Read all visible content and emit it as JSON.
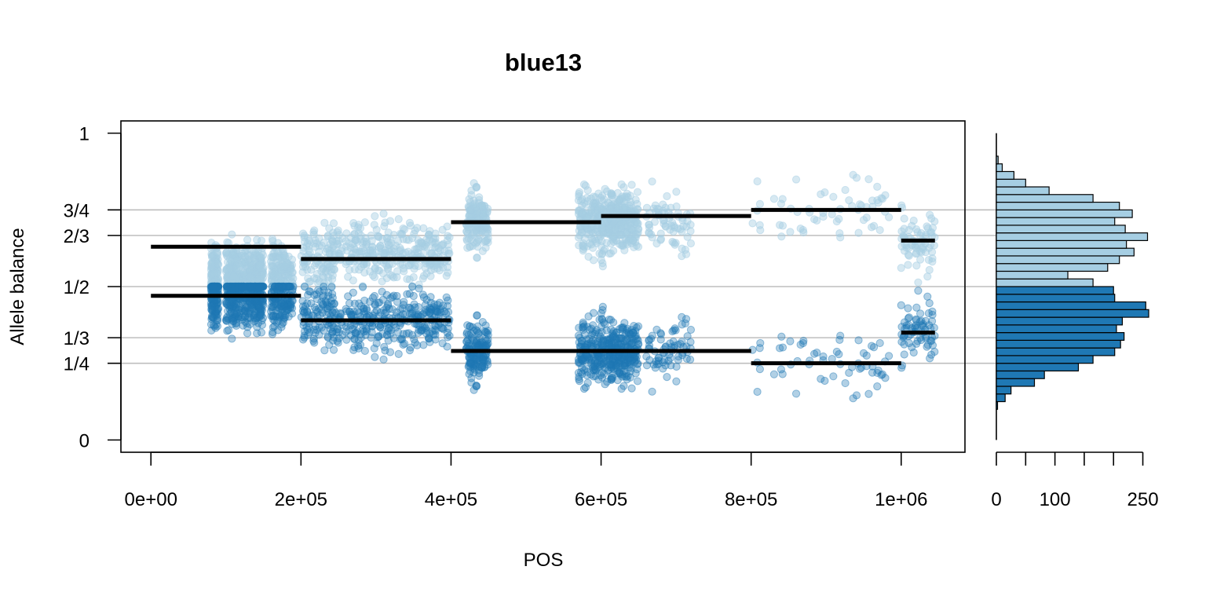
{
  "chart_data": {
    "type": "scatter",
    "title": "blue13",
    "xlabel": "POS",
    "ylabel": "Allele balance",
    "xlim": [
      -40000,
      1085000
    ],
    "ylim": [
      -0.04,
      1.04
    ],
    "x_ticks": [
      0,
      200000,
      400000,
      600000,
      800000,
      1000000
    ],
    "x_tick_labels": [
      "0e+00",
      "2e+05",
      "4e+05",
      "6e+05",
      "8e+05",
      "1e+06"
    ],
    "y_ticks": [
      0,
      0.25,
      0.3333,
      0.5,
      0.6667,
      0.75,
      1
    ],
    "y_tick_labels": [
      "0",
      "1/4",
      "1/3",
      "1/2",
      "2/3",
      "3/4",
      "1"
    ],
    "reference_lines": [
      0.25,
      0.3333,
      0.5,
      0.6667,
      0.75
    ],
    "colors": {
      "minor_allele": "#1F78B4",
      "major_allele": "#A6CEE3",
      "reference_line": "#BEBEBE",
      "segment": "#000000"
    },
    "point_clusters": [
      {
        "x_range": [
          80000,
          90000
        ],
        "density": "medium"
      },
      {
        "x_range": [
          100000,
          150000
        ],
        "density": "high"
      },
      {
        "x_range": [
          160000,
          190000
        ],
        "density": "medium"
      },
      {
        "x_range": [
          200000,
          400000
        ],
        "density": "high"
      },
      {
        "x_range": [
          420000,
          450000
        ],
        "density": "medium"
      },
      {
        "x_range": [
          570000,
          650000
        ],
        "density": "high"
      },
      {
        "x_range": [
          660000,
          720000
        ],
        "density": "low"
      },
      {
        "x_range": [
          800000,
          1000000
        ],
        "density": "sparse"
      },
      {
        "x_range": [
          1000000,
          1045000
        ],
        "density": "low"
      }
    ],
    "segments": [
      {
        "x0": 0,
        "x1": 200000,
        "y_minor": 0.47,
        "y_major": 0.63
      },
      {
        "x0": 200000,
        "x1": 400000,
        "y_minor": 0.39,
        "y_major": 0.59
      },
      {
        "x0": 400000,
        "x1": 600000,
        "y_minor": 0.29,
        "y_major": 0.71
      },
      {
        "x0": 600000,
        "x1": 800000,
        "y_minor": 0.29,
        "y_major": 0.73
      },
      {
        "x0": 800000,
        "x1": 1000000,
        "y_minor": 0.25,
        "y_major": 0.75
      },
      {
        "x0": 1000000,
        "x1": 1045000,
        "y_minor": 0.35,
        "y_major": 0.65
      }
    ],
    "histogram": {
      "orientation": "horizontal",
      "bin_width": 0.025,
      "x_ticks": [
        0,
        50,
        100,
        150,
        200,
        250
      ],
      "x_tick_labels": [
        "0",
        "",
        "100",
        "",
        "",
        "250"
      ],
      "xlim": [
        0,
        260
      ],
      "bins_minor": [
        {
          "y0": 0.1,
          "y1": 0.125,
          "count": 2
        },
        {
          "y0": 0.125,
          "y1": 0.15,
          "count": 15
        },
        {
          "y0": 0.15,
          "y1": 0.175,
          "count": 25
        },
        {
          "y0": 0.175,
          "y1": 0.2,
          "count": 65
        },
        {
          "y0": 0.2,
          "y1": 0.225,
          "count": 82
        },
        {
          "y0": 0.225,
          "y1": 0.25,
          "count": 140
        },
        {
          "y0": 0.25,
          "y1": 0.275,
          "count": 165
        },
        {
          "y0": 0.275,
          "y1": 0.3,
          "count": 202
        },
        {
          "y0": 0.3,
          "y1": 0.325,
          "count": 212
        },
        {
          "y0": 0.325,
          "y1": 0.35,
          "count": 218
        },
        {
          "y0": 0.35,
          "y1": 0.375,
          "count": 205
        },
        {
          "y0": 0.375,
          "y1": 0.4,
          "count": 215
        },
        {
          "y0": 0.4,
          "y1": 0.425,
          "count": 260
        },
        {
          "y0": 0.425,
          "y1": 0.45,
          "count": 255
        },
        {
          "y0": 0.45,
          "y1": 0.475,
          "count": 202
        },
        {
          "y0": 0.475,
          "y1": 0.5,
          "count": 200
        }
      ],
      "bins_major": [
        {
          "y0": 0.5,
          "y1": 0.525,
          "count": 165
        },
        {
          "y0": 0.525,
          "y1": 0.55,
          "count": 122
        },
        {
          "y0": 0.55,
          "y1": 0.575,
          "count": 190
        },
        {
          "y0": 0.575,
          "y1": 0.6,
          "count": 210
        },
        {
          "y0": 0.6,
          "y1": 0.625,
          "count": 235
        },
        {
          "y0": 0.625,
          "y1": 0.65,
          "count": 222
        },
        {
          "y0": 0.65,
          "y1": 0.675,
          "count": 258
        },
        {
          "y0": 0.675,
          "y1": 0.7,
          "count": 220
        },
        {
          "y0": 0.7,
          "y1": 0.725,
          "count": 202
        },
        {
          "y0": 0.725,
          "y1": 0.75,
          "count": 232
        },
        {
          "y0": 0.75,
          "y1": 0.775,
          "count": 210
        },
        {
          "y0": 0.775,
          "y1": 0.8,
          "count": 165
        },
        {
          "y0": 0.8,
          "y1": 0.825,
          "count": 90
        },
        {
          "y0": 0.825,
          "y1": 0.85,
          "count": 50
        },
        {
          "y0": 0.85,
          "y1": 0.875,
          "count": 30
        },
        {
          "y0": 0.875,
          "y1": 0.9,
          "count": 10
        },
        {
          "y0": 0.9,
          "y1": 0.925,
          "count": 3
        }
      ]
    }
  }
}
